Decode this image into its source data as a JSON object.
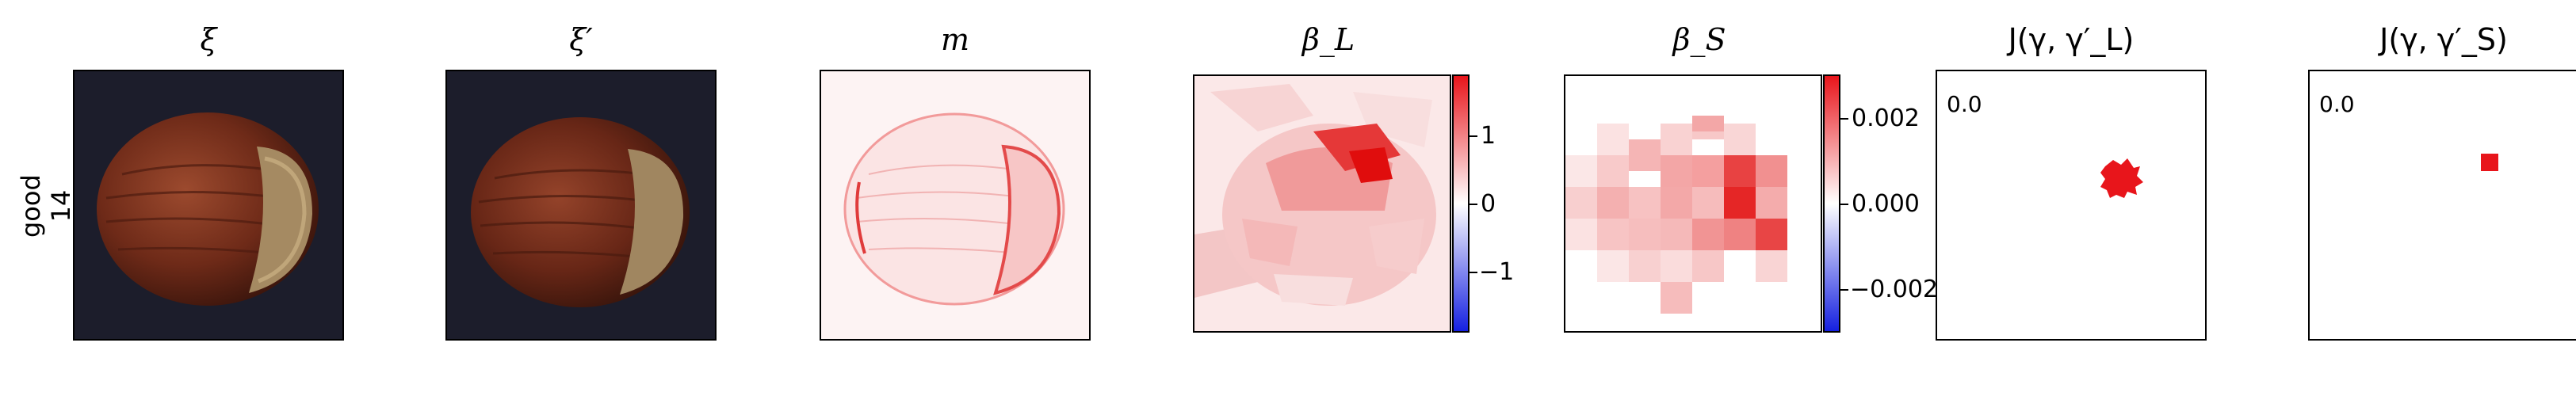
{
  "row_label": {
    "line1": "good",
    "line2": "14"
  },
  "titles": {
    "xi": "ξ",
    "xi_prime": "ξ′",
    "m": "m",
    "beta_l": "β_L",
    "beta_s": "β_S",
    "j_l": "J(γ, γ′_L)",
    "j_s": "J(γ, γ′_S)"
  },
  "colorbar_l": {
    "ticks": [
      "1",
      "0",
      "−1"
    ]
  },
  "colorbar_s": {
    "ticks": [
      "0.002",
      "0.000",
      "−0.002"
    ]
  },
  "overlay_values": {
    "j_l": "0.0",
    "j_s": "0.0"
  },
  "colors": {
    "red": "#e8151b",
    "blue": "#1520e0",
    "bg_dark": "#1c1d2b"
  }
}
